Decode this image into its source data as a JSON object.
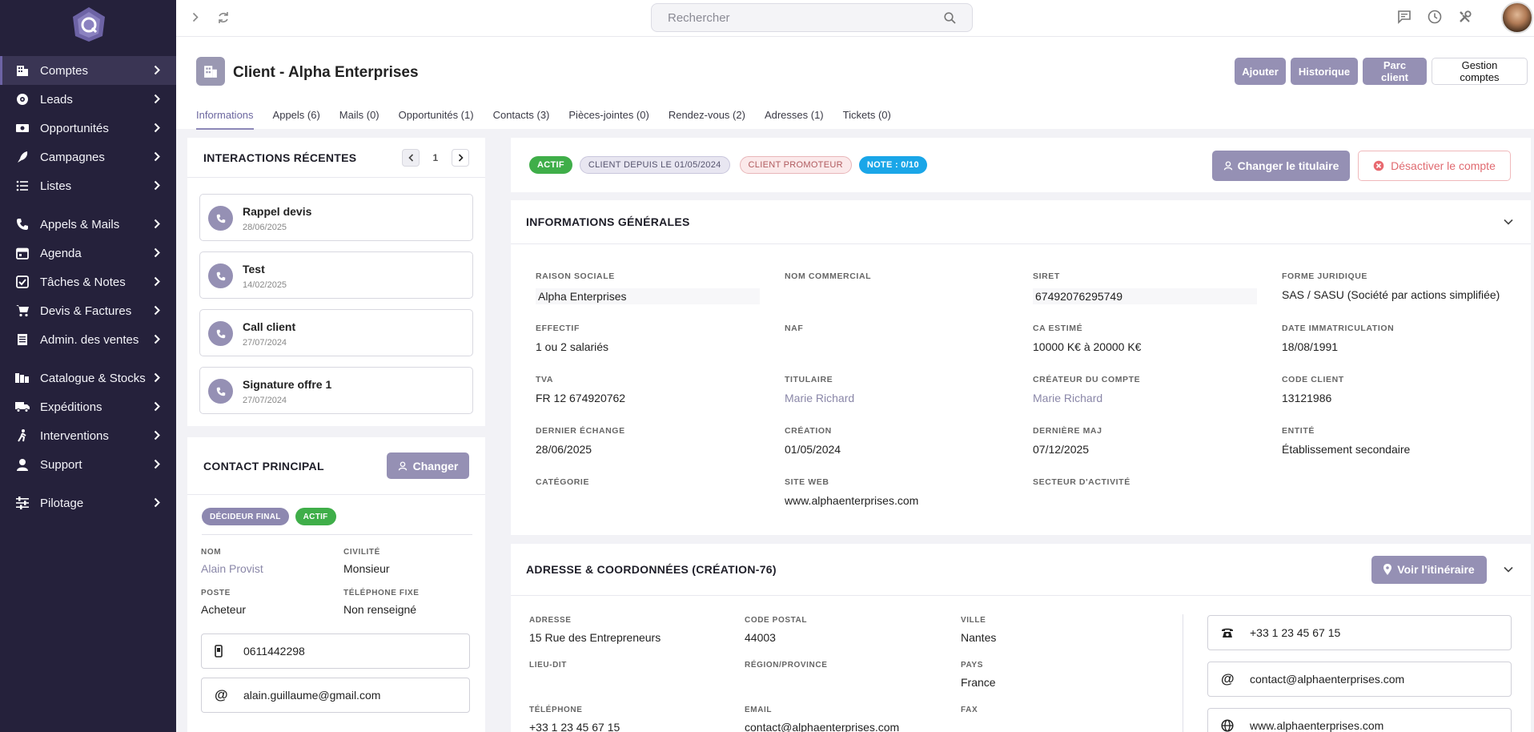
{
  "sidebar": {
    "items": [
      {
        "label": "Comptes",
        "icon": "building-icon",
        "active": true
      },
      {
        "label": "Leads",
        "icon": "target-icon"
      },
      {
        "label": "Opportunités",
        "icon": "money-icon"
      },
      {
        "label": "Campagnes",
        "icon": "rocket-icon"
      },
      {
        "label": "Listes",
        "icon": "list-icon"
      },
      {
        "label": "Appels & Mails",
        "icon": "phone-icon"
      },
      {
        "label": "Agenda",
        "icon": "calendar-icon"
      },
      {
        "label": "Tâches & Notes",
        "icon": "checkbox-icon"
      },
      {
        "label": "Devis & Factures",
        "icon": "cart-icon"
      },
      {
        "label": "Admin. des ventes",
        "icon": "ledger-icon"
      },
      {
        "label": "Catalogue & Stocks",
        "icon": "boxes-icon"
      },
      {
        "label": "Expéditions",
        "icon": "truck-icon"
      },
      {
        "label": "Interventions",
        "icon": "person-walking-icon"
      },
      {
        "label": "Support",
        "icon": "headset-icon"
      },
      {
        "label": "Pilotage",
        "icon": "sliders-icon"
      }
    ]
  },
  "topbar": {
    "search_placeholder": "Rechercher"
  },
  "header": {
    "title": "Client - Alpha Enterprises",
    "buttons": {
      "add": "Ajouter",
      "history": "Historique",
      "park": "Parc client",
      "manage": "Gestion comptes"
    },
    "tabs": [
      "Informations",
      "Appels (6)",
      "Mails (0)",
      "Opportunités (1)",
      "Contacts (3)",
      "Pièces-jointes (0)",
      "Rendez-vous (2)",
      "Adresses (1)",
      "Tickets (0)"
    ]
  },
  "interactions": {
    "title": "INTERACTIONS RÉCENTES",
    "page": "1",
    "items": [
      {
        "title": "Rappel devis",
        "date": "28/06/2025"
      },
      {
        "title": "Test",
        "date": "14/02/2025"
      },
      {
        "title": "Call client",
        "date": "27/07/2024"
      },
      {
        "title": "Signature offre 1",
        "date": "27/07/2024"
      }
    ]
  },
  "contact": {
    "title": "CONTACT PRINCIPAL",
    "change_label": "Changer",
    "badges": [
      "DÉCIDEUR FINAL",
      "ACTIF"
    ],
    "fields": [
      {
        "label": "NOM",
        "value": "Alain Provist"
      },
      {
        "label": "CIVILITÉ",
        "value": "Monsieur"
      },
      {
        "label": "POSTE",
        "value": "Acheteur"
      },
      {
        "label": "TÉLÉPHONE FIXE",
        "value": "Non renseigné"
      }
    ],
    "mobile": "0611442298",
    "email": "alain.guillaume@gmail.com"
  },
  "status": {
    "badges": [
      "ACTIF",
      "CLIENT DEPUIS LE 01/05/2024",
      "CLIENT PROMOTEUR",
      "NOTE : 0/10"
    ],
    "change_owner": "Changer le titulaire",
    "deactivate": "Désactiver le compte"
  },
  "general": {
    "title": "INFORMATIONS GÉNÉRALES",
    "fields": [
      {
        "label": "RAISON SOCIALE",
        "value": "Alpha Enterprises"
      },
      {
        "label": "NOM COMMERCIAL",
        "value": ""
      },
      {
        "label": "SIRET",
        "value": "67492076295749"
      },
      {
        "label": "FORME JURIDIQUE",
        "value": "SAS / SASU (Société par actions simplifiée)"
      },
      {
        "label": "EFFECTIF",
        "value": "1 ou 2 salariés"
      },
      {
        "label": "NAF",
        "value": ""
      },
      {
        "label": "CA ESTIMÉ",
        "value": "10000 K€ à 20000 K€"
      },
      {
        "label": "DATE IMMATRICULATION",
        "value": "18/08/1991"
      },
      {
        "label": "TVA",
        "value": "FR 12 674920762"
      },
      {
        "label": "TITULAIRE",
        "value": "Marie Richard"
      },
      {
        "label": "CRÉATEUR DU COMPTE",
        "value": "Marie Richard"
      },
      {
        "label": "CODE CLIENT",
        "value": "13121986"
      },
      {
        "label": "DERNIER ÉCHANGE",
        "value": "28/06/2025"
      },
      {
        "label": "CRÉATION",
        "value": "01/05/2024"
      },
      {
        "label": "DERNIÈRE MAJ",
        "value": "07/12/2025"
      },
      {
        "label": "ENTITÉ",
        "value": "Établissement secondaire"
      },
      {
        "label": "CATÉGORIE",
        "value": ""
      },
      {
        "label": "SITE WEB",
        "value": "www.alphaenterprises.com"
      },
      {
        "label": "SECTEUR D'ACTIVITÉ",
        "value": ""
      }
    ]
  },
  "address": {
    "title": "ADRESSE & COORDONNÉES (CRÉATION-76)",
    "route_label": "Voir l'itinéraire",
    "fields": [
      {
        "label": "ADRESSE",
        "value": "15 Rue des Entrepreneurs"
      },
      {
        "label": "CODE POSTAL",
        "value": "44003"
      },
      {
        "label": "VILLE",
        "value": "Nantes"
      },
      {
        "label": "LIEU-DIT",
        "value": ""
      },
      {
        "label": "RÉGION/PROVINCE",
        "value": ""
      },
      {
        "label": "PAYS",
        "value": "France"
      },
      {
        "label": "TÉLÉPHONE",
        "value": "+33 1 23 45 67 15"
      },
      {
        "label": "EMAIL",
        "value": "contact@alphaenterprises.com"
      },
      {
        "label": "FAX",
        "value": ""
      }
    ],
    "phone": "+33 1 23 45 67 15",
    "email": "contact@alphaenterprises.com",
    "website": "www.alphaenterprises.com"
  }
}
